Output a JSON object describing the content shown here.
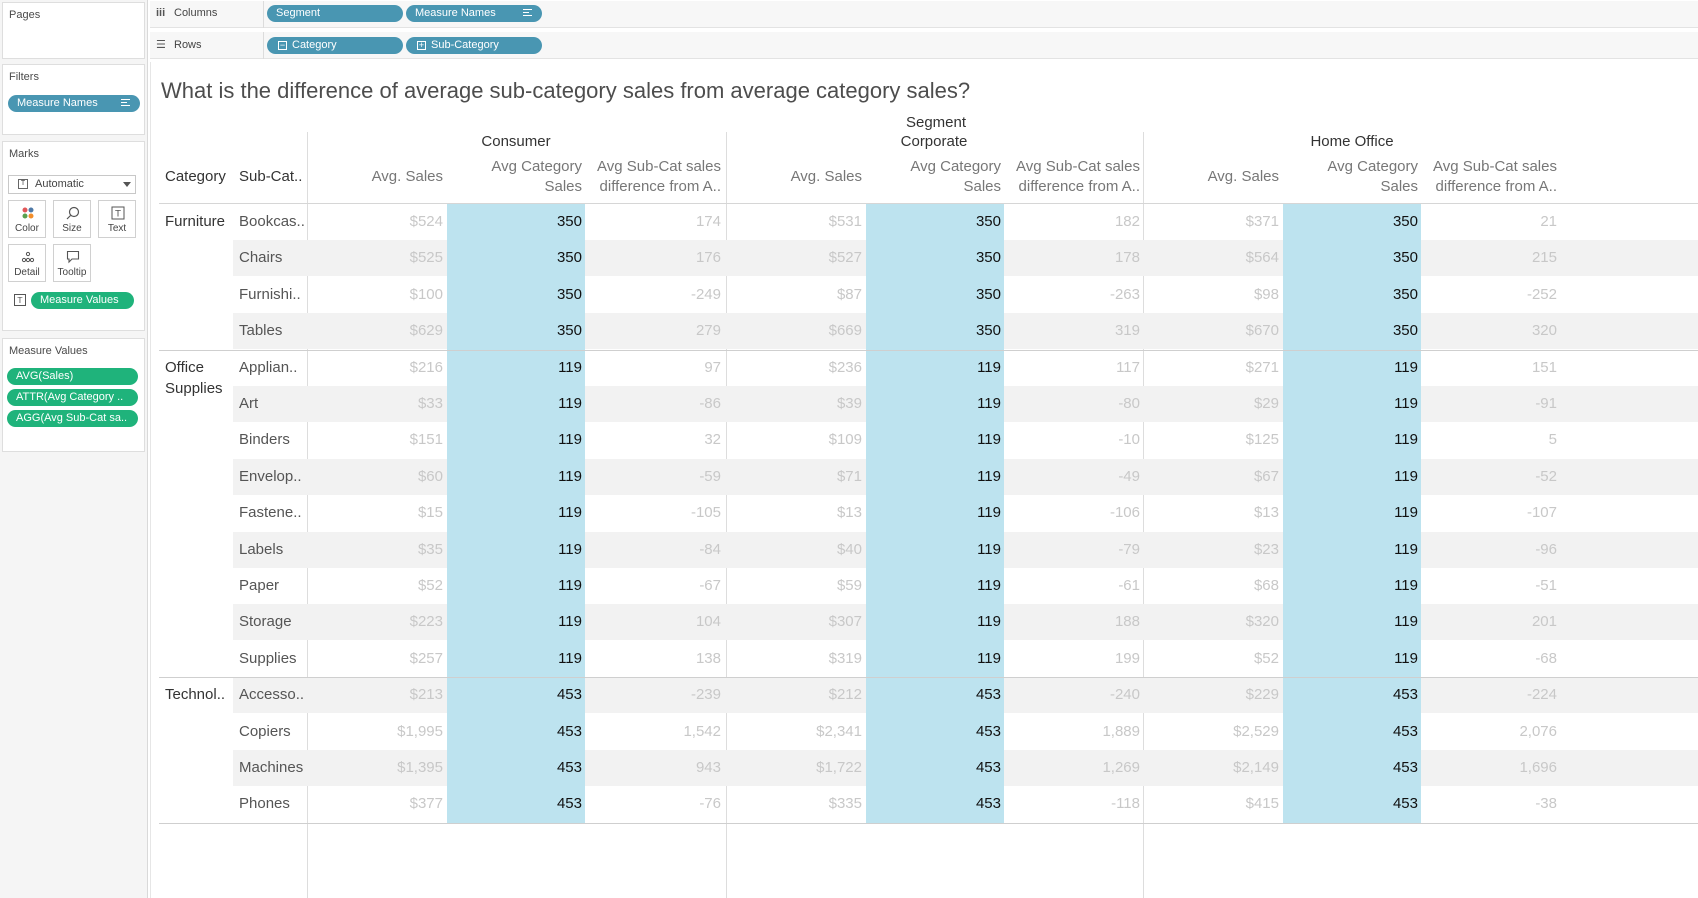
{
  "left_pane": {
    "pages_title": "Pages",
    "filters_title": "Filters",
    "filter_pill": "Measure Names",
    "marks_title": "Marks",
    "mark_type": "Automatic",
    "mark_buttons": [
      "Color",
      "Size",
      "Text",
      "Detail",
      "Tooltip"
    ],
    "marks_pill": "Measure Values",
    "measure_values_title": "Measure Values",
    "measure_values": [
      "AVG(Sales)",
      "ATTR(Avg Category ..",
      "AGG(Avg Sub-Cat sa.."
    ]
  },
  "shelves": {
    "columns_label": "Columns",
    "columns_pills": [
      "Segment",
      "Measure Names"
    ],
    "rows_label": "Rows",
    "rows_pills": [
      "Category",
      "Sub-Category"
    ]
  },
  "viz": {
    "title": "What is the difference of average sub-category sales from average category sales?",
    "segment_header": "Segment",
    "row_headers": [
      "Category",
      "Sub-Cat.."
    ],
    "segments": [
      "Consumer",
      "Corporate",
      "Home Office"
    ],
    "measure_headers": {
      "avg_sales": "Avg. Sales",
      "avg_cat_line1": "Avg Category",
      "avg_cat_line2": "Sales",
      "diff_line1": "Avg Sub-Cat sales",
      "diff_line2": "difference from A.."
    },
    "colors": {
      "highlight": "#bde3ef",
      "band": "#f2f2f2",
      "pill_blue": "#4996b2",
      "pill_green": "#1fb37b"
    },
    "categories": [
      {
        "name": "Furniture",
        "rows": [
          {
            "sub": "Bookcas..",
            "values": [
              "$524",
              "350",
              "174",
              "$531",
              "350",
              "182",
              "$371",
              "350",
              "21"
            ]
          },
          {
            "sub": "Chairs",
            "values": [
              "$525",
              "350",
              "176",
              "$527",
              "350",
              "178",
              "$564",
              "350",
              "215"
            ]
          },
          {
            "sub": "Furnishi..",
            "values": [
              "$100",
              "350",
              "-249",
              "$87",
              "350",
              "-263",
              "$98",
              "350",
              "-252"
            ]
          },
          {
            "sub": "Tables",
            "values": [
              "$629",
              "350",
              "279",
              "$669",
              "350",
              "319",
              "$670",
              "350",
              "320"
            ]
          }
        ]
      },
      {
        "name": "Office Supplies",
        "rows": [
          {
            "sub": "Applian..",
            "values": [
              "$216",
              "119",
              "97",
              "$236",
              "119",
              "117",
              "$271",
              "119",
              "151"
            ]
          },
          {
            "sub": "Art",
            "values": [
              "$33",
              "119",
              "-86",
              "$39",
              "119",
              "-80",
              "$29",
              "119",
              "-91"
            ]
          },
          {
            "sub": "Binders",
            "values": [
              "$151",
              "119",
              "32",
              "$109",
              "119",
              "-10",
              "$125",
              "119",
              "5"
            ]
          },
          {
            "sub": "Envelop..",
            "values": [
              "$60",
              "119",
              "-59",
              "$71",
              "119",
              "-49",
              "$67",
              "119",
              "-52"
            ]
          },
          {
            "sub": "Fastene..",
            "values": [
              "$15",
              "119",
              "-105",
              "$13",
              "119",
              "-106",
              "$13",
              "119",
              "-107"
            ]
          },
          {
            "sub": "Labels",
            "values": [
              "$35",
              "119",
              "-84",
              "$40",
              "119",
              "-79",
              "$23",
              "119",
              "-96"
            ]
          },
          {
            "sub": "Paper",
            "values": [
              "$52",
              "119",
              "-67",
              "$59",
              "119",
              "-61",
              "$68",
              "119",
              "-51"
            ]
          },
          {
            "sub": "Storage",
            "values": [
              "$223",
              "119",
              "104",
              "$307",
              "119",
              "188",
              "$320",
              "119",
              "201"
            ]
          },
          {
            "sub": "Supplies",
            "values": [
              "$257",
              "119",
              "138",
              "$319",
              "119",
              "199",
              "$52",
              "119",
              "-68"
            ]
          }
        ]
      },
      {
        "name": "Technol..",
        "rows": [
          {
            "sub": "Accesso..",
            "values": [
              "$213",
              "453",
              "-239",
              "$212",
              "453",
              "-240",
              "$229",
              "453",
              "-224"
            ]
          },
          {
            "sub": "Copiers",
            "values": [
              "$1,995",
              "453",
              "1,542",
              "$2,341",
              "453",
              "1,889",
              "$2,529",
              "453",
              "2,076"
            ]
          },
          {
            "sub": "Machines",
            "values": [
              "$1,395",
              "453",
              "943",
              "$1,722",
              "453",
              "1,269",
              "$2,149",
              "453",
              "1,696"
            ]
          },
          {
            "sub": "Phones",
            "values": [
              "$377",
              "453",
              "-76",
              "$335",
              "453",
              "-118",
              "$415",
              "453",
              "-38"
            ]
          }
        ]
      }
    ]
  }
}
